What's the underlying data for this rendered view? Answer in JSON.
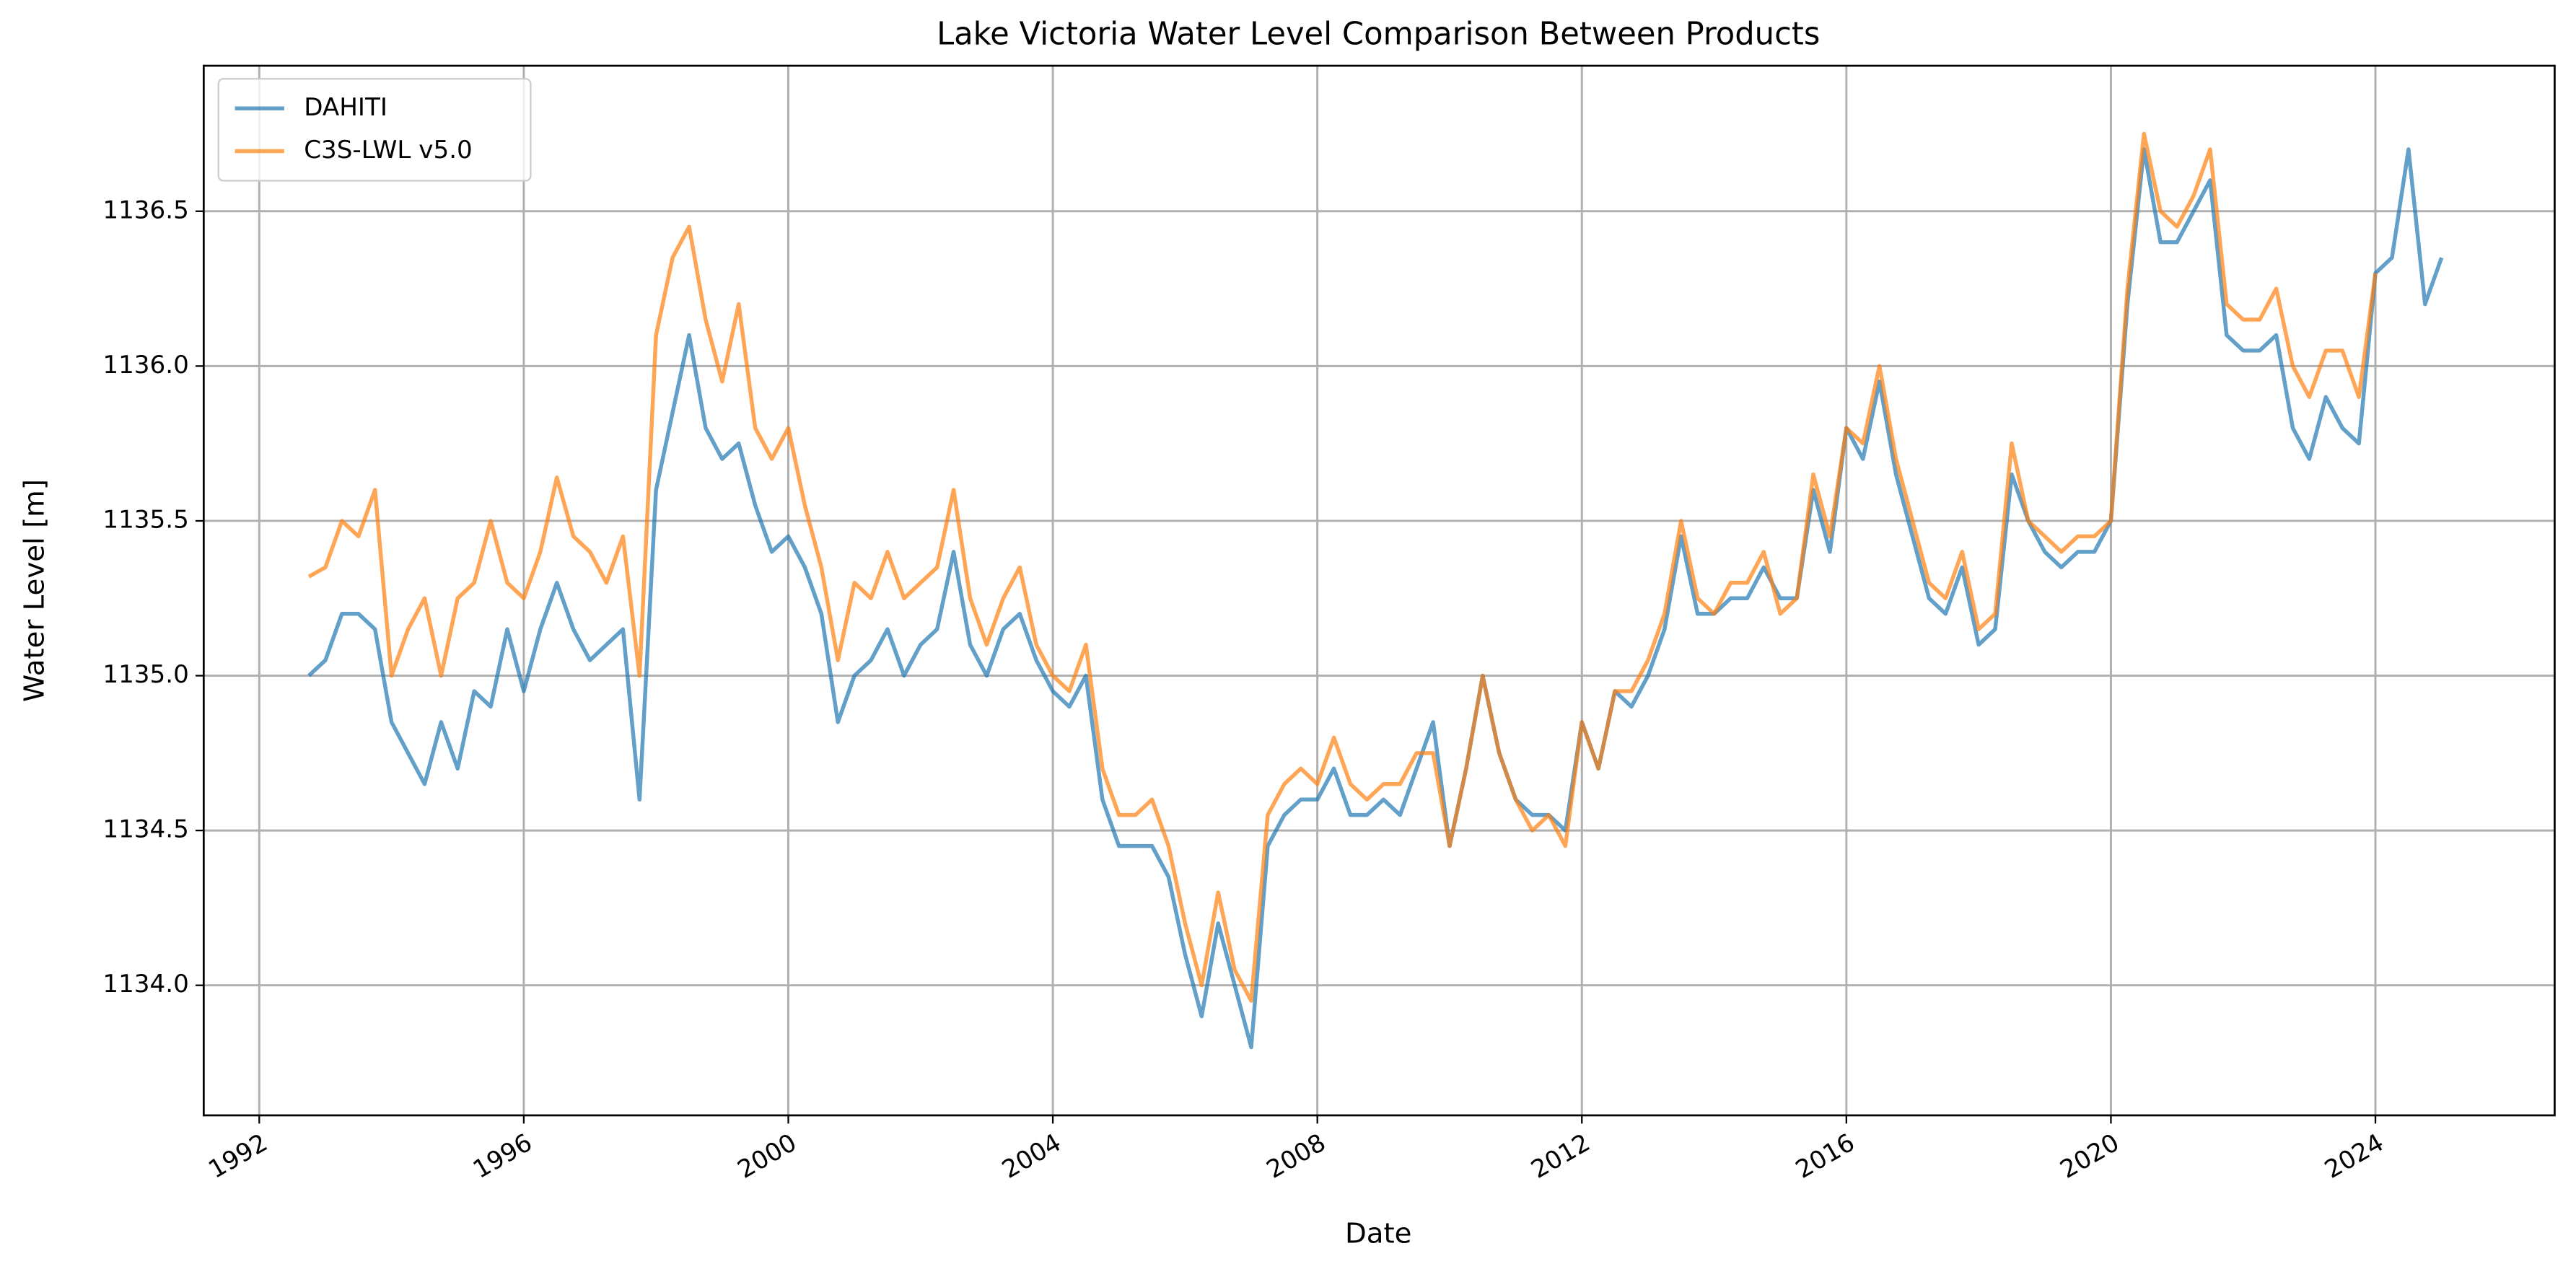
{
  "chart_data": {
    "type": "line",
    "title": "Lake Victoria Water Level Comparison Between Products",
    "x_label": "Date",
    "y_label": "Water Level [m]",
    "x": [
      1992.75,
      1993,
      1993.25,
      1993.5,
      1993.75,
      1994,
      1994.25,
      1994.5,
      1994.75,
      1995,
      1995.25,
      1995.5,
      1995.75,
      1996,
      1996.25,
      1996.5,
      1996.75,
      1997,
      1997.25,
      1997.5,
      1997.75,
      1998,
      1998.25,
      1998.5,
      1998.75,
      1999,
      1999.25,
      1999.5,
      1999.75,
      2000,
      2000.25,
      2000.5,
      2000.75,
      2001,
      2001.25,
      2001.5,
      2001.75,
      2002,
      2002.25,
      2002.5,
      2002.75,
      2003,
      2003.25,
      2003.5,
      2003.75,
      2004,
      2004.25,
      2004.5,
      2004.75,
      2005,
      2005.25,
      2005.5,
      2005.75,
      2006,
      2006.25,
      2006.5,
      2006.75,
      2007,
      2007.25,
      2007.5,
      2007.75,
      2008,
      2008.25,
      2008.5,
      2008.75,
      2009,
      2009.25,
      2009.5,
      2009.75,
      2010,
      2010.25,
      2010.5,
      2010.75,
      2011,
      2011.25,
      2011.5,
      2011.75,
      2012,
      2012.25,
      2012.5,
      2012.75,
      2013,
      2013.25,
      2013.5,
      2013.75,
      2014,
      2014.25,
      2014.5,
      2014.75,
      2015,
      2015.25,
      2015.5,
      2015.75,
      2016,
      2016.25,
      2016.5,
      2016.75,
      2017,
      2017.25,
      2017.5,
      2017.75,
      2018,
      2018.25,
      2018.5,
      2018.75,
      2019,
      2019.25,
      2019.5,
      2019.75,
      2020,
      2020.25,
      2020.5,
      2020.75,
      2021,
      2021.25,
      2021.5,
      2021.75,
      2022,
      2022.25,
      2022.5,
      2022.75,
      2023,
      2023.25,
      2023.5,
      2023.75,
      2024,
      2024.25,
      2024.5,
      2024.75,
      2025
    ],
    "series": [
      {
        "name": "DAHITI",
        "color": "#1f77b4",
        "values": [
          1135.0,
          1135.05,
          1135.2,
          1135.2,
          1135.15,
          1134.85,
          1134.75,
          1134.65,
          1134.85,
          1134.7,
          1134.95,
          1134.9,
          1135.15,
          1134.95,
          1135.15,
          1135.3,
          1135.15,
          1135.05,
          1135.1,
          1135.15,
          1134.6,
          1135.6,
          1135.85,
          1136.1,
          1135.8,
          1135.7,
          1135.75,
          1135.55,
          1135.4,
          1135.45,
          1135.35,
          1135.2,
          1134.85,
          1135.0,
          1135.05,
          1135.15,
          1135.0,
          1135.1,
          1135.15,
          1135.4,
          1135.1,
          1135.0,
          1135.15,
          1135.2,
          1135.05,
          1134.95,
          1134.9,
          1135.0,
          1134.6,
          1134.45,
          1134.45,
          1134.45,
          1134.35,
          1134.1,
          1133.9,
          1134.2,
          1134.0,
          1133.8,
          1134.45,
          1134.55,
          1134.6,
          1134.6,
          1134.7,
          1134.55,
          1134.55,
          1134.6,
          1134.55,
          1134.7,
          1134.85,
          1134.45,
          1134.7,
          1135.0,
          1134.75,
          1134.6,
          1134.55,
          1134.55,
          1134.5,
          1134.85,
          1134.7,
          1134.95,
          1134.9,
          1135.0,
          1135.15,
          1135.45,
          1135.2,
          1135.2,
          1135.25,
          1135.25,
          1135.35,
          1135.25,
          1135.25,
          1135.6,
          1135.4,
          1135.8,
          1135.7,
          1135.95,
          1135.65,
          1135.45,
          1135.25,
          1135.2,
          1135.35,
          1135.1,
          1135.15,
          1135.65,
          1135.5,
          1135.4,
          1135.35,
          1135.4,
          1135.4,
          1135.5,
          1136.2,
          1136.7,
          1136.4,
          1136.4,
          1136.5,
          1136.6,
          1136.1,
          1136.05,
          1136.05,
          1136.1,
          1135.8,
          1135.7,
          1135.9,
          1135.8,
          1135.75,
          1136.3,
          1136.35,
          1136.7,
          1136.2,
          1136.35
        ]
      },
      {
        "name": "C3S-LWL v5.0",
        "color": "#ff7f0e",
        "values": [
          1135.32,
          1135.35,
          1135.5,
          1135.45,
          1135.6,
          1135.0,
          1135.15,
          1135.25,
          1135.0,
          1135.25,
          1135.3,
          1135.5,
          1135.3,
          1135.25,
          1135.4,
          1135.64,
          1135.45,
          1135.4,
          1135.3,
          1135.45,
          1135.0,
          1136.1,
          1136.35,
          1136.45,
          1136.15,
          1135.95,
          1136.2,
          1135.8,
          1135.7,
          1135.8,
          1135.55,
          1135.35,
          1135.05,
          1135.3,
          1135.25,
          1135.4,
          1135.25,
          1135.3,
          1135.35,
          1135.6,
          1135.25,
          1135.1,
          1135.25,
          1135.35,
          1135.1,
          1135.0,
          1134.95,
          1135.1,
          1134.7,
          1134.55,
          1134.55,
          1134.6,
          1134.45,
          1134.2,
          1134.0,
          1134.3,
          1134.05,
          1133.95,
          1134.55,
          1134.65,
          1134.7,
          1134.65,
          1134.8,
          1134.65,
          1134.6,
          1134.65,
          1134.65,
          1134.75,
          1134.75,
          1134.45,
          1134.7,
          1135.0,
          1134.75,
          1134.6,
          1134.5,
          1134.55,
          1134.45,
          1134.85,
          1134.7,
          1134.95,
          1134.95,
          1135.05,
          1135.2,
          1135.5,
          1135.25,
          1135.2,
          1135.3,
          1135.3,
          1135.4,
          1135.2,
          1135.25,
          1135.65,
          1135.45,
          1135.8,
          1135.75,
          1136.0,
          1135.7,
          1135.5,
          1135.3,
          1135.25,
          1135.4,
          1135.15,
          1135.2,
          1135.75,
          1135.5,
          1135.45,
          1135.4,
          1135.45,
          1135.45,
          1135.5,
          1136.25,
          1136.75,
          1136.5,
          1136.45,
          1136.55,
          1136.7,
          1136.2,
          1136.15,
          1136.15,
          1136.25,
          1136.0,
          1135.9,
          1136.05,
          1136.05,
          1135.9,
          1136.3,
          null,
          null,
          null,
          null
        ]
      }
    ],
    "xlim": [
      1991.16,
      2026.71
    ],
    "xticks": [
      1992,
      1996,
      2000,
      2004,
      2008,
      2012,
      2016,
      2020,
      2024
    ],
    "ylim": [
      1133.58,
      1136.97
    ],
    "yticks": [
      {
        "value": 1134,
        "label": "1134.0"
      },
      1134.5,
      {
        "value": 1135,
        "label": "1135.0"
      },
      1135.5,
      {
        "value": 1136,
        "label": "1136.0"
      },
      1136.5
    ],
    "grid": true,
    "legend": "upper left"
  }
}
